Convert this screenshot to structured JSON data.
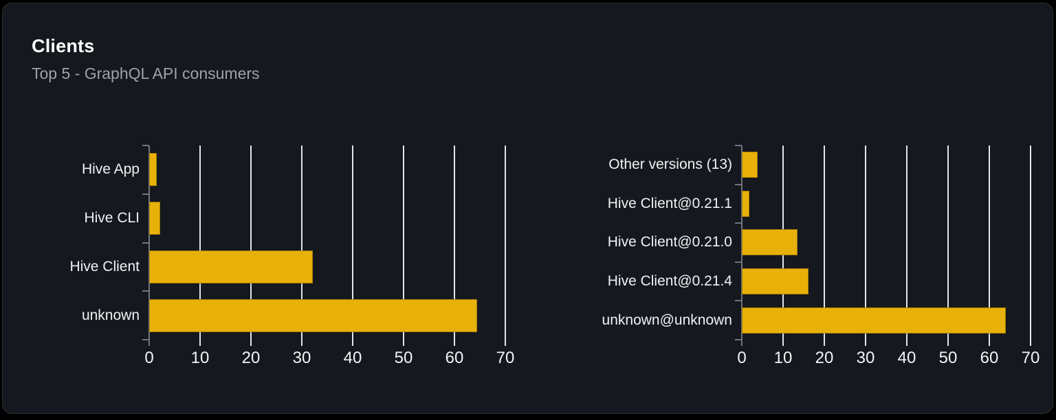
{
  "card": {
    "title": "Clients",
    "subtitle": "Top 5 - GraphQL API consumers"
  },
  "colors": {
    "page_bg": "#000000",
    "card_bg": "#15181e",
    "card_border": "#2b2f36",
    "title": "#ffffff",
    "subtitle": "#9ca3ab",
    "bar": "#e8b109",
    "gridline": "#e2e7ee",
    "axis": "#70757e",
    "category_label": "#f0f2f4",
    "tick_label": "#f2f4f6"
  },
  "chart_data": [
    {
      "type": "bar",
      "orientation": "horizontal",
      "position": "left",
      "title": "",
      "categories": [
        "Hive App",
        "Hive CLI",
        "Hive Client",
        "unknown"
      ],
      "values": [
        1.5,
        2.2,
        32.2,
        64.4
      ],
      "xlim": [
        0,
        70
      ],
      "xticks": [
        0,
        10,
        20,
        30,
        40,
        50,
        60,
        70
      ],
      "grid": "vertical gridlines on",
      "legend": "none",
      "bar_color": "#e8b109"
    },
    {
      "type": "bar",
      "orientation": "horizontal",
      "position": "right",
      "title": "",
      "categories": [
        "Other versions (13)",
        "Hive Client@0.21.1",
        "Hive Client@0.21.0",
        "Hive Client@0.21.4",
        "unknown@unknown"
      ],
      "values": [
        3.8,
        1.8,
        13.5,
        16.2,
        64
      ],
      "xlim": [
        0,
        70
      ],
      "xticks": [
        0,
        10,
        20,
        30,
        40,
        50,
        60,
        70
      ],
      "grid": "vertical gridlines on",
      "legend": "none",
      "bar_color": "#e8b109"
    }
  ]
}
